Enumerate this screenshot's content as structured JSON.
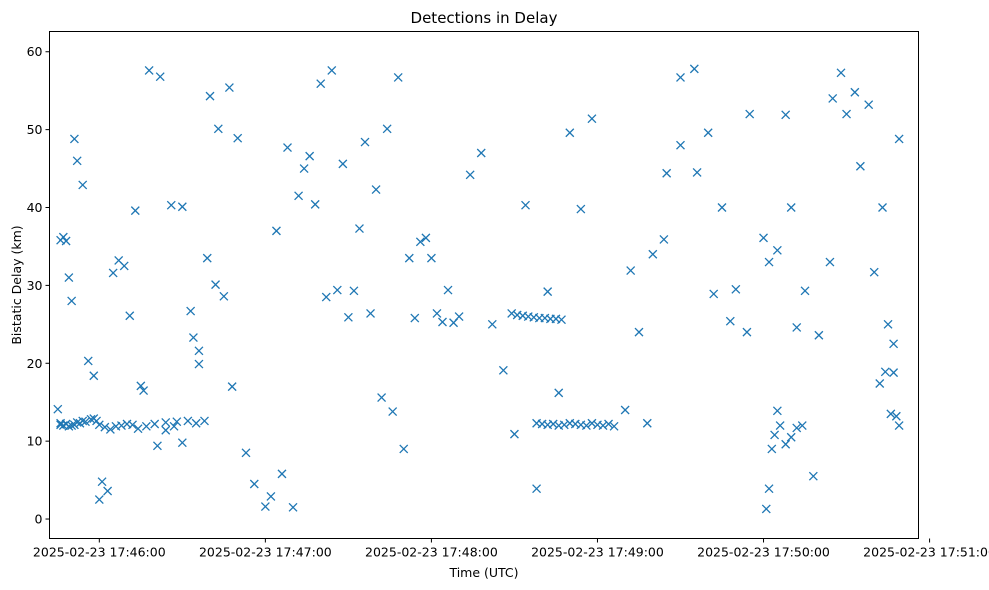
{
  "chart_data": {
    "type": "scatter",
    "title": "Detections in Delay",
    "xlabel": "Time (UTC)",
    "ylabel": "Bistatic Delay (km)",
    "xlim": [
      "2025-02-23 17:45:42",
      "2025-02-23 17:50:56"
    ],
    "ylim": [
      -2.5,
      62.6
    ],
    "xticks": [
      {
        "value": "2025-02-23 17:46:00",
        "label": "2025-02-23 17:46:00"
      },
      {
        "value": "2025-02-23 17:47:00",
        "label": "2025-02-23 17:47:00"
      },
      {
        "value": "2025-02-23 17:48:00",
        "label": "2025-02-23 17:48:00"
      },
      {
        "value": "2025-02-23 17:49:00",
        "label": "2025-02-23 17:49:00"
      },
      {
        "value": "2025-02-23 17:50:00",
        "label": "2025-02-23 17:50:00"
      },
      {
        "value": "2025-02-23 17:51:00",
        "label": "2025-02-23 17:51:00"
      }
    ],
    "yticks": [
      0,
      10,
      20,
      30,
      40,
      50,
      60
    ],
    "grid": false,
    "legend": "none",
    "marker": "x",
    "color": "#1f77b4",
    "series": [
      {
        "name": "",
        "x": [
          "2025-02-23 17:45:45",
          "2025-02-23 17:45:46",
          "2025-02-23 17:45:46",
          "2025-02-23 17:45:47",
          "2025-02-23 17:45:48",
          "2025-02-23 17:45:49",
          "2025-02-23 17:45:50",
          "2025-02-23 17:45:51",
          "2025-02-23 17:45:52",
          "2025-02-23 17:45:53",
          "2025-02-23 17:45:54",
          "2025-02-23 17:45:55",
          "2025-02-23 17:45:57",
          "2025-02-23 17:45:58",
          "2025-02-23 17:45:59",
          "2025-02-23 17:46:00",
          "2025-02-23 17:46:02",
          "2025-02-23 17:46:04",
          "2025-02-23 17:46:06",
          "2025-02-23 17:46:08",
          "2025-02-23 17:46:10",
          "2025-02-23 17:46:12",
          "2025-02-23 17:46:14",
          "2025-02-23 17:46:17",
          "2025-02-23 17:46:20",
          "2025-02-23 17:46:24",
          "2025-02-23 17:46:28",
          "2025-02-23 17:46:32",
          "2025-02-23 17:46:35",
          "2025-02-23 17:46:38",
          "2025-02-23 17:45:46",
          "2025-02-23 17:45:47",
          "2025-02-23 17:45:48",
          "2025-02-23 17:45:49",
          "2025-02-23 17:45:50",
          "2025-02-23 17:45:51",
          "2025-02-23 17:45:52",
          "2025-02-23 17:45:54",
          "2025-02-23 17:45:56",
          "2025-02-23 17:45:58",
          "2025-02-23 17:46:00",
          "2025-02-23 17:46:01",
          "2025-02-23 17:46:03",
          "2025-02-23 17:46:05",
          "2025-02-23 17:46:07",
          "2025-02-23 17:46:09",
          "2025-02-23 17:46:11",
          "2025-02-23 17:46:13",
          "2025-02-23 17:46:15",
          "2025-02-23 17:46:16",
          "2025-02-23 17:46:18",
          "2025-02-23 17:46:22",
          "2025-02-23 17:46:26",
          "2025-02-23 17:46:30",
          "2025-02-23 17:46:34",
          "2025-02-23 17:46:36",
          "2025-02-23 17:46:40",
          "2025-02-23 17:46:43",
          "2025-02-23 17:46:47",
          "2025-02-23 17:46:50",
          "2025-02-23 17:46:53",
          "2025-02-23 17:46:56",
          "2025-02-23 17:47:00",
          "2025-02-23 17:47:04",
          "2025-02-23 17:47:08",
          "2025-02-23 17:47:12",
          "2025-02-23 17:47:16",
          "2025-02-23 17:47:20",
          "2025-02-23 17:47:24",
          "2025-02-23 17:47:28",
          "2025-02-23 17:47:32",
          "2025-02-23 17:47:36",
          "2025-02-23 17:47:40",
          "2025-02-23 17:47:44",
          "2025-02-23 17:47:48",
          "2025-02-23 17:47:52",
          "2025-02-23 17:47:56",
          "2025-02-23 17:48:00",
          "2025-02-23 17:48:04",
          "2025-02-23 17:48:08",
          "2025-02-23 17:46:21",
          "2025-02-23 17:46:24",
          "2025-02-23 17:46:27",
          "2025-02-23 17:46:30",
          "2025-02-23 17:46:33",
          "2025-02-23 17:46:36",
          "2025-02-23 17:46:39",
          "2025-02-23 17:46:42",
          "2025-02-23 17:46:45",
          "2025-02-23 17:46:48",
          "2025-02-23 17:47:02",
          "2025-02-23 17:47:06",
          "2025-02-23 17:47:10",
          "2025-02-23 17:47:14",
          "2025-02-23 17:47:18",
          "2025-02-23 17:47:22",
          "2025-02-23 17:47:26",
          "2025-02-23 17:47:30",
          "2025-02-23 17:47:34",
          "2025-02-23 17:47:38",
          "2025-02-23 17:47:42",
          "2025-02-23 17:47:46",
          "2025-02-23 17:47:50",
          "2025-02-23 17:47:54",
          "2025-02-23 17:47:58",
          "2025-02-23 17:48:02",
          "2025-02-23 17:48:06",
          "2025-02-23 17:48:10",
          "2025-02-23 17:48:14",
          "2025-02-23 17:48:18",
          "2025-02-23 17:48:22",
          "2025-02-23 17:48:26",
          "2025-02-23 17:48:30",
          "2025-02-23 17:48:34",
          "2025-02-23 17:48:38",
          "2025-02-23 17:48:42",
          "2025-02-23 17:48:46",
          "2025-02-23 17:48:50",
          "2025-02-23 17:48:54",
          "2025-02-23 17:48:58",
          "2025-02-23 17:48:29",
          "2025-02-23 17:48:31",
          "2025-02-23 17:48:33",
          "2025-02-23 17:48:35",
          "2025-02-23 17:48:37",
          "2025-02-23 17:48:39",
          "2025-02-23 17:48:41",
          "2025-02-23 17:48:43",
          "2025-02-23 17:48:45",
          "2025-02-23 17:48:47",
          "2025-02-23 17:48:38",
          "2025-02-23 17:48:40",
          "2025-02-23 17:48:42",
          "2025-02-23 17:48:44",
          "2025-02-23 17:48:46",
          "2025-02-23 17:48:48",
          "2025-02-23 17:48:50",
          "2025-02-23 17:48:52",
          "2025-02-23 17:48:54",
          "2025-02-23 17:48:56",
          "2025-02-23 17:48:58",
          "2025-02-23 17:49:00",
          "2025-02-23 17:49:02",
          "2025-02-23 17:49:04",
          "2025-02-23 17:49:06",
          "2025-02-23 17:49:10",
          "2025-02-23 17:49:15",
          "2025-02-23 17:49:20",
          "2025-02-23 17:49:25",
          "2025-02-23 17:49:30",
          "2025-02-23 17:49:35",
          "2025-02-23 17:49:40",
          "2025-02-23 17:49:45",
          "2025-02-23 17:49:50",
          "2025-02-23 17:49:55",
          "2025-02-23 17:50:00",
          "2025-02-23 17:50:05",
          "2025-02-23 17:50:10",
          "2025-02-23 17:50:15",
          "2025-02-23 17:50:20",
          "2025-02-23 17:50:25",
          "2025-02-23 17:50:30",
          "2025-02-23 17:50:35",
          "2025-02-23 17:50:40",
          "2025-02-23 17:50:43",
          "2025-02-23 17:50:45",
          "2025-02-23 17:50:46",
          "2025-02-23 17:50:47",
          "2025-02-23 17:50:48",
          "2025-02-23 17:50:49",
          "2025-02-23 17:49:12",
          "2025-02-23 17:49:18",
          "2025-02-23 17:49:24",
          "2025-02-23 17:49:30",
          "2025-02-23 17:49:36",
          "2025-02-23 17:49:42",
          "2025-02-23 17:49:48",
          "2025-02-23 17:49:54",
          "2025-02-23 17:50:02",
          "2025-02-23 17:50:08",
          "2025-02-23 17:50:12",
          "2025-02-23 17:50:18",
          "2025-02-23 17:50:24",
          "2025-02-23 17:50:28",
          "2025-02-23 17:50:33",
          "2025-02-23 17:50:38",
          "2025-02-23 17:50:42",
          "2025-02-23 17:50:44",
          "2025-02-23 17:50:47",
          "2025-02-23 17:50:49",
          "2025-02-23 17:50:01",
          "2025-02-23 17:50:02",
          "2025-02-23 17:50:03",
          "2025-02-23 17:50:04",
          "2025-02-23 17:50:05",
          "2025-02-23 17:50:06",
          "2025-02-23 17:50:08",
          "2025-02-23 17:50:10",
          "2025-02-23 17:50:12",
          "2025-02-23 17:50:14"
        ],
        "y": [
          14.1,
          12.3,
          12.1,
          12.0,
          12.2,
          11.9,
          12.0,
          12.1,
          12.4,
          12.3,
          12.6,
          12.5,
          12.8,
          12.9,
          12.6,
          12.1,
          11.8,
          11.5,
          11.9,
          12.0,
          12.2,
          12.1,
          11.6,
          11.9,
          12.2,
          12.4,
          12.5,
          12.6,
          12.3,
          12.6,
          35.8,
          36.2,
          35.7,
          31.0,
          28.0,
          48.8,
          46.0,
          42.9,
          20.3,
          18.4,
          2.5,
          4.8,
          3.6,
          31.6,
          33.2,
          32.5,
          26.1,
          39.6,
          17.1,
          16.5,
          57.6,
          56.8,
          40.3,
          40.1,
          23.3,
          21.6,
          54.3,
          50.1,
          55.4,
          48.9,
          8.5,
          4.5,
          1.6,
          37.0,
          47.7,
          41.5,
          46.6,
          55.9,
          57.6,
          45.6,
          29.3,
          48.4,
          42.3,
          50.1,
          56.7,
          33.5,
          35.6,
          33.5,
          25.3,
          25.2,
          9.4,
          11.4,
          11.9,
          9.8,
          26.7,
          19.9,
          33.5,
          30.1,
          28.6,
          17.0,
          2.9,
          5.8,
          1.5,
          45.0,
          40.4,
          28.5,
          29.4,
          25.9,
          37.3,
          26.4,
          15.6,
          13.8,
          9.0,
          25.8,
          36.1,
          26.4,
          29.4,
          26.0,
          44.2,
          47.0,
          25.0,
          19.1,
          10.9,
          40.3,
          3.9,
          29.2,
          16.2,
          49.6,
          39.8,
          51.4,
          26.4,
          26.2,
          26.1,
          26.0,
          25.9,
          25.8,
          25.8,
          25.7,
          25.7,
          25.6,
          12.3,
          12.2,
          12.1,
          12.2,
          12.0,
          12.1,
          12.3,
          12.2,
          12.1,
          12.0,
          12.3,
          12.1,
          12.0,
          12.2,
          11.9,
          14.0,
          24.0,
          34.0,
          44.4,
          56.7,
          57.8,
          49.6,
          40.0,
          29.5,
          52.0,
          36.1,
          34.5,
          40.0,
          29.3,
          23.6,
          54.0,
          52.0,
          45.3,
          31.7,
          40.0,
          25.0,
          13.5,
          18.8,
          13.2,
          12.0,
          31.9,
          12.3,
          35.9,
          48.0,
          44.5,
          28.9,
          25.4,
          24.0,
          33.0,
          51.9,
          24.6,
          5.5,
          33.0,
          57.3,
          54.8,
          53.2,
          17.4,
          18.9,
          22.5,
          48.8,
          1.3,
          3.9,
          9.0,
          10.8,
          13.9,
          12.0,
          9.6,
          10.5,
          11.7,
          12.0
        ]
      }
    ]
  }
}
